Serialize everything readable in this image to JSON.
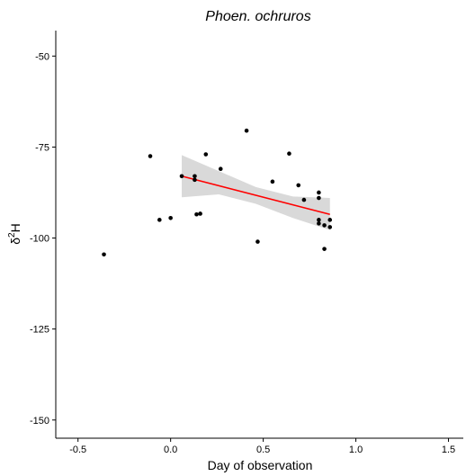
{
  "chart_data": {
    "type": "scatter",
    "title": "Phoen. ochruros",
    "xlabel": "Day of observation",
    "ylabel_base": "δ",
    "ylabel_sup": "2",
    "ylabel_rest": "H",
    "xlim": [
      -0.62,
      1.58
    ],
    "ylim": [
      -155,
      -43
    ],
    "x_ticks": [
      -0.5,
      0.0,
      0.5,
      1.0,
      1.5
    ],
    "x_tick_labels": [
      "-0.5",
      "0.0",
      "0.5",
      "1.0",
      "1.5"
    ],
    "y_ticks": [
      -50,
      -75,
      -100,
      -125,
      -150
    ],
    "y_tick_labels": [
      "-50",
      "-75",
      "-100",
      "-125",
      "-150"
    ],
    "grid": false,
    "points": [
      {
        "x": -0.36,
        "y": -104.5
      },
      {
        "x": -0.11,
        "y": -77.5
      },
      {
        "x": -0.06,
        "y": -95.0
      },
      {
        "x": 0.0,
        "y": -94.5
      },
      {
        "x": 0.06,
        "y": -83.0
      },
      {
        "x": 0.13,
        "y": -83.0
      },
      {
        "x": 0.13,
        "y": -84.0
      },
      {
        "x": 0.14,
        "y": -93.5
      },
      {
        "x": 0.16,
        "y": -93.3
      },
      {
        "x": 0.19,
        "y": -77.0
      },
      {
        "x": 0.27,
        "y": -81.0
      },
      {
        "x": 0.41,
        "y": -70.5
      },
      {
        "x": 0.47,
        "y": -101.0
      },
      {
        "x": 0.55,
        "y": -84.5
      },
      {
        "x": 0.64,
        "y": -76.8
      },
      {
        "x": 0.69,
        "y": -85.5
      },
      {
        "x": 0.72,
        "y": -89.5
      },
      {
        "x": 0.8,
        "y": -87.5
      },
      {
        "x": 0.8,
        "y": -89.0
      },
      {
        "x": 0.8,
        "y": -95.0
      },
      {
        "x": 0.8,
        "y": -96.0
      },
      {
        "x": 0.83,
        "y": -96.5
      },
      {
        "x": 0.83,
        "y": -103.0
      },
      {
        "x": 0.86,
        "y": -95.0
      },
      {
        "x": 0.86,
        "y": -97.0
      }
    ],
    "fit_line": {
      "x": [
        0.06,
        0.86
      ],
      "y": [
        -83.0,
        -93.5
      ],
      "color": "#ff0000"
    },
    "confidence_band": {
      "x": [
        0.06,
        0.26,
        0.46,
        0.66,
        0.86
      ],
      "lower": [
        -88.8,
        -88.0,
        -90.6,
        -94.5,
        -97.8
      ],
      "upper": [
        -77.2,
        -81.6,
        -86.0,
        -88.6,
        -89.0
      ],
      "color": "#d9d9d9"
    },
    "point_color": "#000000"
  }
}
